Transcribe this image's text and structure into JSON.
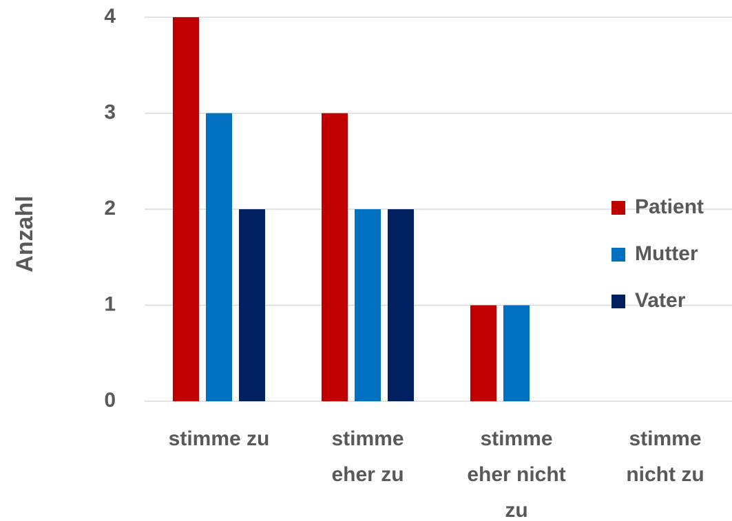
{
  "chart_data": {
    "type": "bar",
    "categories": [
      "stimme zu",
      "stimme eher zu",
      "stimme eher nicht zu",
      "stimme nicht zu"
    ],
    "series": [
      {
        "name": "Patient",
        "color": "#c00000",
        "values": [
          4,
          3,
          1,
          0
        ]
      },
      {
        "name": "Mutter",
        "color": "#0070c0",
        "values": [
          3,
          2,
          1,
          0
        ]
      },
      {
        "name": "Vater",
        "color": "#002060",
        "values": [
          2,
          2,
          0,
          0
        ]
      }
    ],
    "y_label": "Anzahl",
    "ylim": [
      0,
      4
    ],
    "yticks": [
      0,
      1,
      2,
      3,
      4
    ],
    "grid": true,
    "legend": "right"
  }
}
